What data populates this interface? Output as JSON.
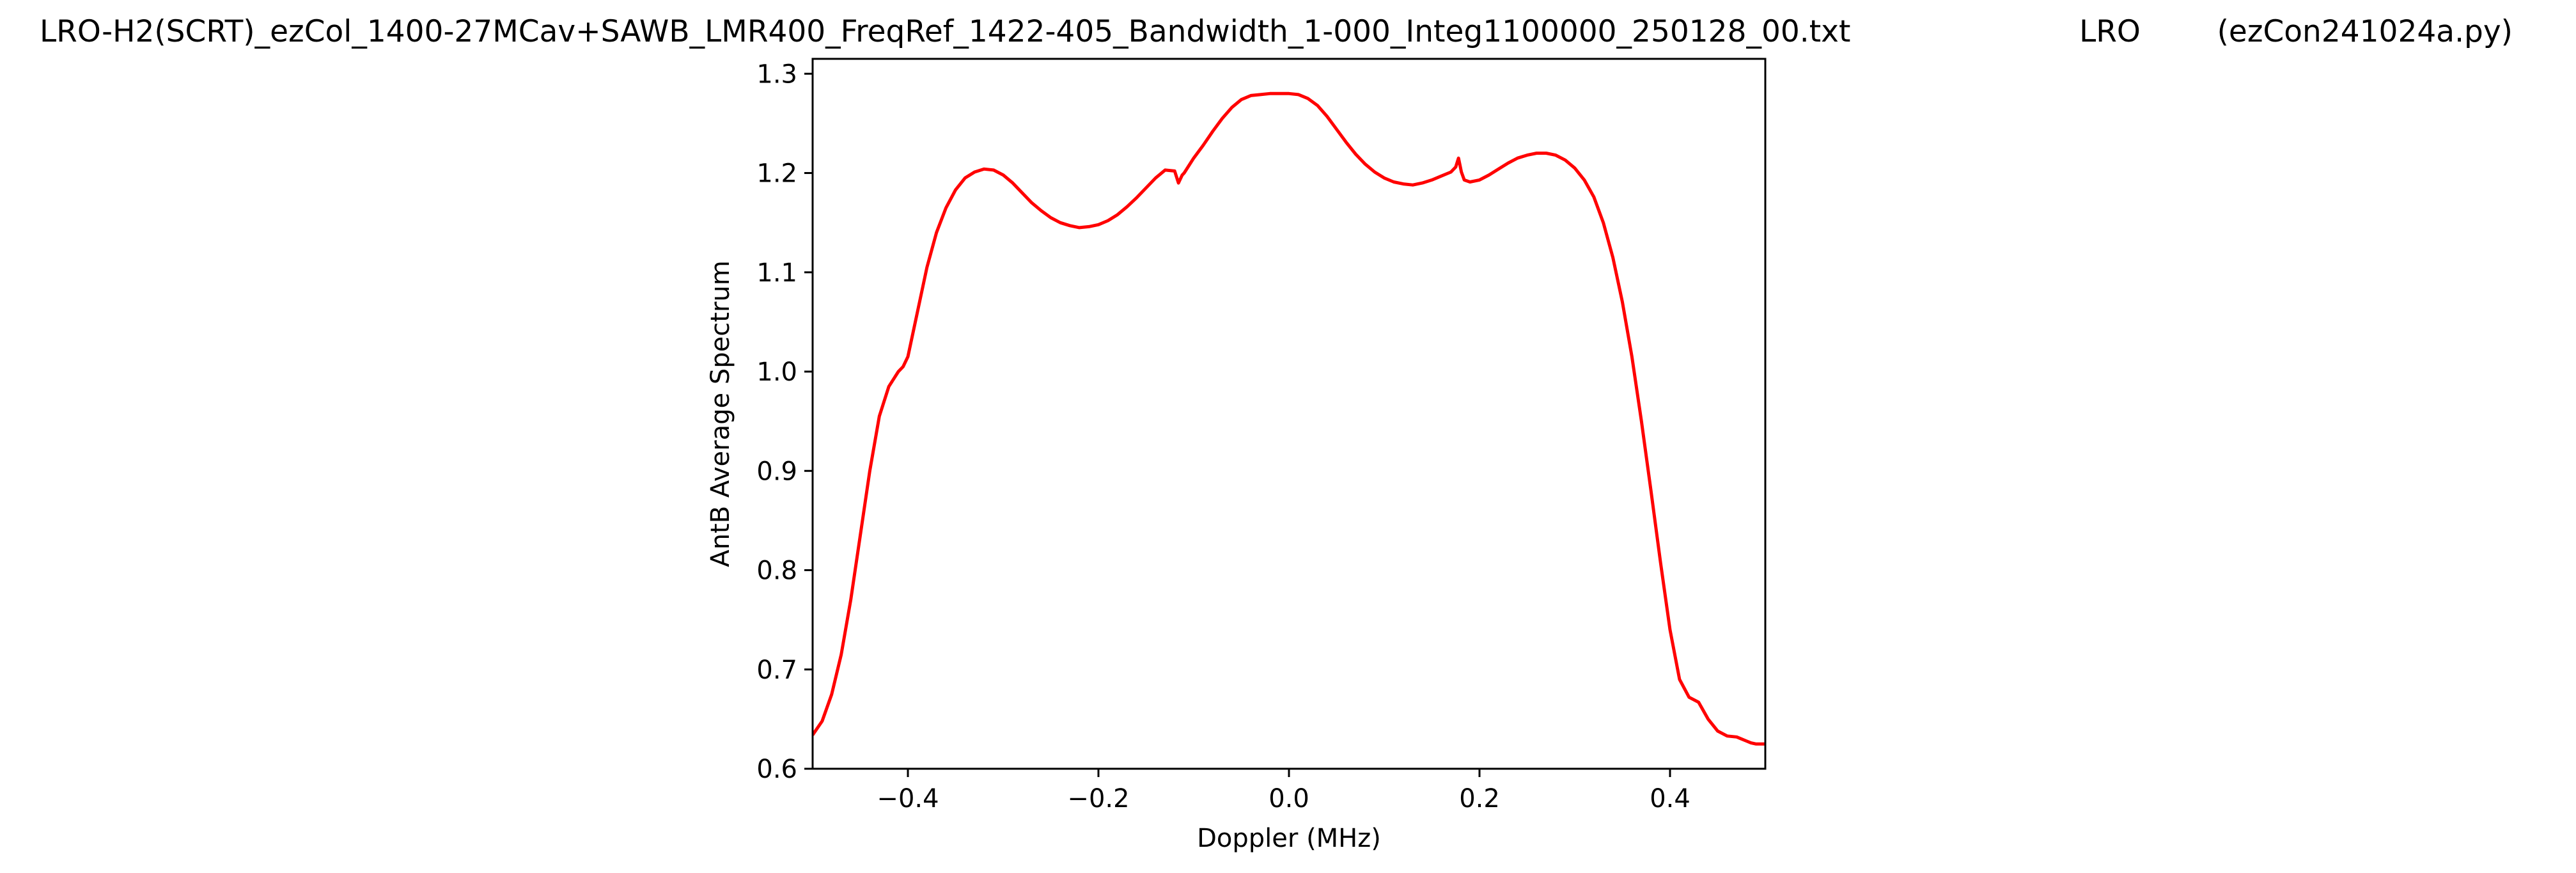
{
  "window": {
    "title_left": "LRO-H2(SCRT)_ezCol_1400-27MCav+SAWB_LMR400_FreqRef_1422-405_Bandwidth_1-000_Integ1100000_250128_00.txt",
    "title_center": "LRO",
    "title_right": "(ezCon241024a.py)"
  },
  "chart_data": {
    "type": "line",
    "title": "",
    "xlabel": "Doppler (MHz)",
    "ylabel": "AntB Average Spectrum",
    "xlim": [
      -0.5,
      0.5
    ],
    "ylim": [
      0.6,
      1.315
    ],
    "xticks": [
      -0.4,
      -0.2,
      0.0,
      0.2,
      0.4
    ],
    "xtick_labels": [
      "−0.4",
      "−0.2",
      "0.0",
      "0.2",
      "0.4"
    ],
    "yticks": [
      0.6,
      0.7,
      0.8,
      0.9,
      1.0,
      1.1,
      1.2,
      1.3
    ],
    "ytick_labels": [
      "0.6",
      "0.7",
      "0.8",
      "0.9",
      "1.0",
      "1.1",
      "1.2",
      "1.3"
    ],
    "grid": false,
    "legend": "none",
    "series": [
      {
        "color": "#ff0000",
        "x": [
          -0.5,
          -0.49,
          -0.48,
          -0.47,
          -0.46,
          -0.45,
          -0.44,
          -0.43,
          -0.42,
          -0.41,
          -0.405,
          -0.4,
          -0.39,
          -0.38,
          -0.37,
          -0.36,
          -0.35,
          -0.34,
          -0.33,
          -0.32,
          -0.31,
          -0.3,
          -0.29,
          -0.28,
          -0.27,
          -0.26,
          -0.25,
          -0.24,
          -0.23,
          -0.22,
          -0.21,
          -0.2,
          -0.19,
          -0.18,
          -0.17,
          -0.16,
          -0.15,
          -0.14,
          -0.13,
          -0.12,
          -0.116,
          -0.112,
          -0.11,
          -0.1,
          -0.09,
          -0.08,
          -0.07,
          -0.06,
          -0.05,
          -0.04,
          -0.03,
          -0.02,
          -0.01,
          0.0,
          0.01,
          0.02,
          0.03,
          0.04,
          0.05,
          0.06,
          0.07,
          0.08,
          0.09,
          0.1,
          0.11,
          0.12,
          0.13,
          0.14,
          0.15,
          0.16,
          0.17,
          0.175,
          0.178,
          0.181,
          0.184,
          0.19,
          0.2,
          0.21,
          0.22,
          0.23,
          0.24,
          0.25,
          0.26,
          0.27,
          0.28,
          0.29,
          0.3,
          0.31,
          0.32,
          0.33,
          0.34,
          0.35,
          0.36,
          0.37,
          0.38,
          0.39,
          0.4,
          0.41,
          0.42,
          0.43,
          0.44,
          0.45,
          0.46,
          0.47,
          0.475,
          0.48,
          0.485,
          0.49,
          0.5
        ],
        "y": [
          0.634,
          0.648,
          0.675,
          0.715,
          0.77,
          0.835,
          0.9,
          0.955,
          0.985,
          1.0,
          1.005,
          1.015,
          1.06,
          1.105,
          1.14,
          1.165,
          1.183,
          1.195,
          1.201,
          1.204,
          1.203,
          1.198,
          1.19,
          1.18,
          1.17,
          1.162,
          1.155,
          1.15,
          1.147,
          1.145,
          1.146,
          1.148,
          1.152,
          1.158,
          1.166,
          1.175,
          1.185,
          1.195,
          1.203,
          1.202,
          1.19,
          1.198,
          1.2,
          1.215,
          1.228,
          1.242,
          1.255,
          1.266,
          1.274,
          1.278,
          1.279,
          1.28,
          1.28,
          1.28,
          1.279,
          1.275,
          1.268,
          1.257,
          1.244,
          1.231,
          1.219,
          1.209,
          1.201,
          1.195,
          1.191,
          1.189,
          1.188,
          1.19,
          1.193,
          1.197,
          1.201,
          1.206,
          1.215,
          1.201,
          1.193,
          1.191,
          1.193,
          1.198,
          1.204,
          1.21,
          1.215,
          1.218,
          1.22,
          1.22,
          1.218,
          1.213,
          1.205,
          1.193,
          1.176,
          1.15,
          1.115,
          1.07,
          1.015,
          0.95,
          0.88,
          0.808,
          0.74,
          0.69,
          0.672,
          0.667,
          0.65,
          0.638,
          0.633,
          0.632,
          0.63,
          0.628,
          0.626,
          0.625,
          0.625
        ]
      }
    ]
  }
}
